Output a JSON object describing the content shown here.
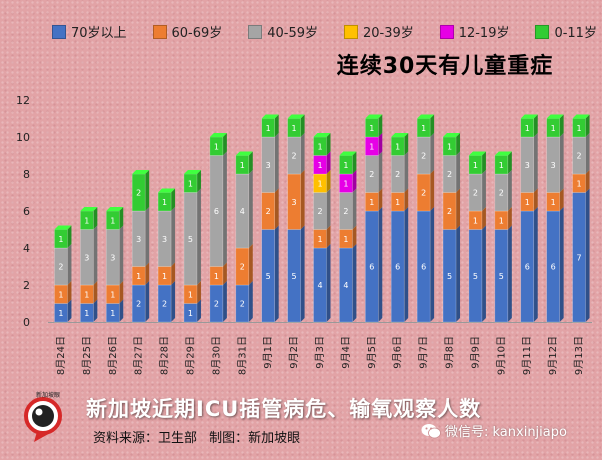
{
  "chart_data": {
    "type": "bar",
    "stacked": true,
    "title": "连续30天有儿童重症",
    "categories": [
      "8月24日",
      "8月25日",
      "8月26日",
      "8月27日",
      "8月28日",
      "8月29日",
      "8月30日",
      "8月31日",
      "9月1日",
      "9月2日",
      "9月3日",
      "9月4日",
      "9月5日",
      "9月6日",
      "9月7日",
      "9月8日",
      "9月9日",
      "9月10日",
      "9月11日",
      "9月12日",
      "9月13日"
    ],
    "series": [
      {
        "name": "70岁以上",
        "color": "#4472c4",
        "values": [
          1,
          1,
          1,
          2,
          2,
          1,
          2,
          2,
          5,
          5,
          4,
          4,
          6,
          6,
          6,
          5,
          5,
          5,
          6,
          6,
          7
        ]
      },
      {
        "name": "60-69岁",
        "color": "#ed7d31",
        "values": [
          1,
          1,
          1,
          1,
          1,
          1,
          1,
          2,
          2,
          3,
          1,
          1,
          1,
          1,
          2,
          2,
          1,
          1,
          1,
          1,
          1
        ]
      },
      {
        "name": "40-59岁",
        "color": "#a5a5a5",
        "values": [
          2,
          3,
          3,
          3,
          3,
          5,
          6,
          4,
          3,
          2,
          2,
          2,
          2,
          2,
          2,
          2,
          2,
          2,
          3,
          3,
          2
        ]
      },
      {
        "name": "20-39岁",
        "color": "#ffc000",
        "values": [
          0,
          0,
          0,
          0,
          0,
          0,
          0,
          0,
          0,
          0,
          1,
          0,
          0,
          0,
          0,
          0,
          0,
          0,
          0,
          0,
          0
        ]
      },
      {
        "name": "12-19岁",
        "color": "#e600e6",
        "values": [
          0,
          0,
          0,
          0,
          0,
          0,
          0,
          0,
          0,
          0,
          1,
          1,
          1,
          0,
          0,
          0,
          0,
          0,
          0,
          0,
          0
        ]
      },
      {
        "name": "0-11岁",
        "color": "#33cc33",
        "values": [
          1,
          1,
          1,
          2,
          1,
          1,
          1,
          1,
          1,
          1,
          1,
          1,
          1,
          1,
          1,
          1,
          1,
          1,
          1,
          1,
          1
        ]
      }
    ],
    "ylim": [
      0,
      12
    ],
    "yticks": [
      0,
      2,
      4,
      6,
      8,
      10,
      12
    ],
    "grid": false,
    "legend": "top"
  },
  "footer": {
    "title": "新加坡近期ICU插管病危、输氧观察人数",
    "source": "资料来源：卫生部",
    "credit": "制图：新加坡眼",
    "wechat": "微信号: kanxinjiapo",
    "logo_text": "新加坡眼"
  }
}
